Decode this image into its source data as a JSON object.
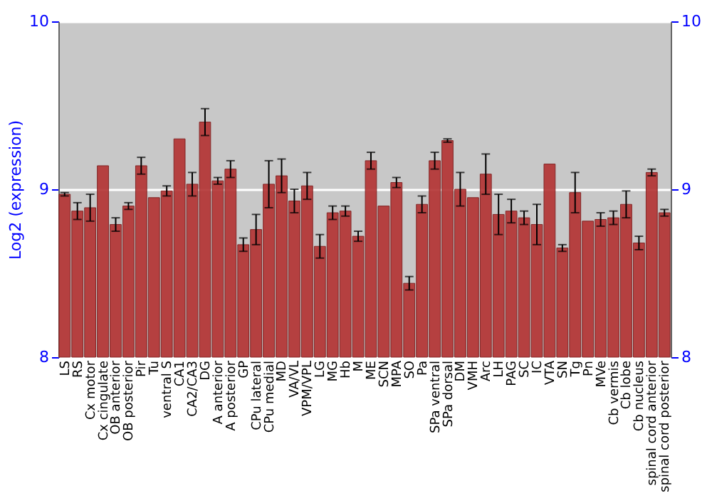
{
  "chart_data": {
    "type": "bar",
    "ylabel": "Log2 (expression)",
    "categories": [
      "LS",
      "RS",
      "Cx motor",
      "Cx cingulate",
      "OB anterior",
      "OB posterior",
      "Pir",
      "Tu",
      "ventral S",
      "CA1",
      "CA2/CA3",
      "DG",
      "A anterior",
      "A posterior",
      "GP",
      "CPu lateral",
      "CPu medial",
      "MD",
      "VA/VL",
      "VPM/VPL",
      "LG",
      "MG",
      "Hb",
      "M",
      "ME",
      "SCN",
      "MPA",
      "SO",
      "Pa",
      "SPa ventral",
      "SPa dorsal",
      "DM",
      "VMH",
      "Arc",
      "LH",
      "PAG",
      "SC",
      "IC",
      "VTA",
      "SN",
      "Tg",
      "Pn",
      "MVe",
      "Cb vermis",
      "Cb lobe",
      "Cb nucleus",
      "spinal cord anterior",
      "spinal cord posterior"
    ],
    "values": [
      8.97,
      8.87,
      8.89,
      9.14,
      8.79,
      8.9,
      9.14,
      8.95,
      8.99,
      9.3,
      9.03,
      9.4,
      9.05,
      9.12,
      8.67,
      8.76,
      9.03,
      9.08,
      8.93,
      9.02,
      8.66,
      8.86,
      8.87,
      8.72,
      9.17,
      8.9,
      9.04,
      8.44,
      8.91,
      9.17,
      9.29,
      9.0,
      8.95,
      9.09,
      8.85,
      8.87,
      8.83,
      8.79,
      9.15,
      8.65,
      8.98,
      8.81,
      8.82,
      8.83,
      8.91,
      8.68,
      9.1,
      8.86
    ],
    "errors": [
      0.01,
      0.05,
      0.08,
      null,
      0.04,
      0.02,
      0.05,
      null,
      0.03,
      null,
      0.07,
      0.08,
      0.02,
      0.05,
      0.04,
      0.09,
      0.14,
      0.1,
      0.07,
      0.08,
      0.07,
      0.04,
      0.03,
      0.03,
      0.05,
      null,
      0.03,
      0.04,
      0.05,
      0.05,
      0.01,
      0.1,
      null,
      0.12,
      0.12,
      0.07,
      0.04,
      0.12,
      null,
      0.02,
      0.12,
      null,
      0.04,
      0.04,
      0.08,
      0.04,
      0.02,
      0.02
    ],
    "color": "#b33232",
    "ylim": [
      8,
      10
    ],
    "yticks": [
      8,
      9,
      10
    ],
    "y2lim": [
      8,
      10
    ],
    "y2ticks": [
      8,
      9,
      10
    ],
    "grid": "y"
  }
}
